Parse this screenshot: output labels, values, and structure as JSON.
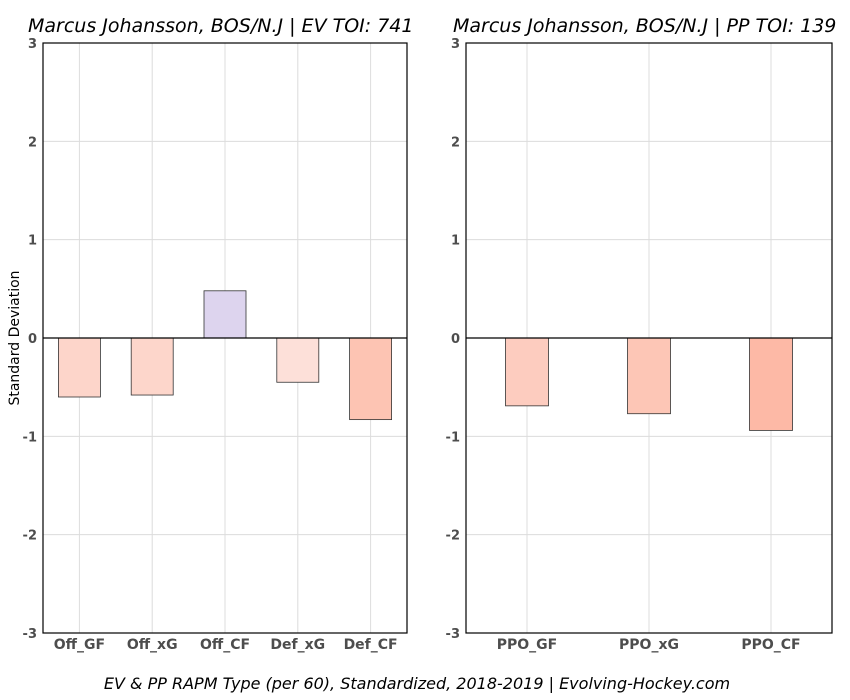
{
  "chart_data": [
    {
      "type": "bar",
      "title": "Marcus Johansson, BOS/N.J  |  EV TOI: 741",
      "xlabel": "",
      "ylabel": "Standard Deviation",
      "ylim": [
        -3,
        3
      ],
      "yticks": [
        -3,
        -2,
        -1,
        0,
        1,
        2,
        3
      ],
      "grid": true,
      "categories": [
        "Off_GF",
        "Off_xG",
        "Off_CF",
        "Def_xG",
        "Def_CF"
      ],
      "values": [
        -0.6,
        -0.58,
        0.48,
        -0.45,
        -0.83
      ],
      "colors": [
        "#fdd5ca",
        "#fdd6cb",
        "#ddd4ee",
        "#fde0d9",
        "#fdc4b3"
      ]
    },
    {
      "type": "bar",
      "title": "Marcus Johansson, BOS/N.J  |  PP TOI: 139",
      "xlabel": "",
      "ylabel": "",
      "ylim": [
        -3,
        3
      ],
      "yticks": [
        -3,
        -2,
        -1,
        0,
        1,
        2,
        3
      ],
      "grid": true,
      "categories": [
        "PPO_GF",
        "PPO_xG",
        "PPO_CF"
      ],
      "values": [
        -0.69,
        -0.77,
        -0.94
      ],
      "colors": [
        "#fdccbf",
        "#fdc6b6",
        "#fdb9a6"
      ]
    }
  ],
  "caption": "EV & PP RAPM Type (per 60), Standardized, 2018-2019    |    Evolving-Hockey.com"
}
